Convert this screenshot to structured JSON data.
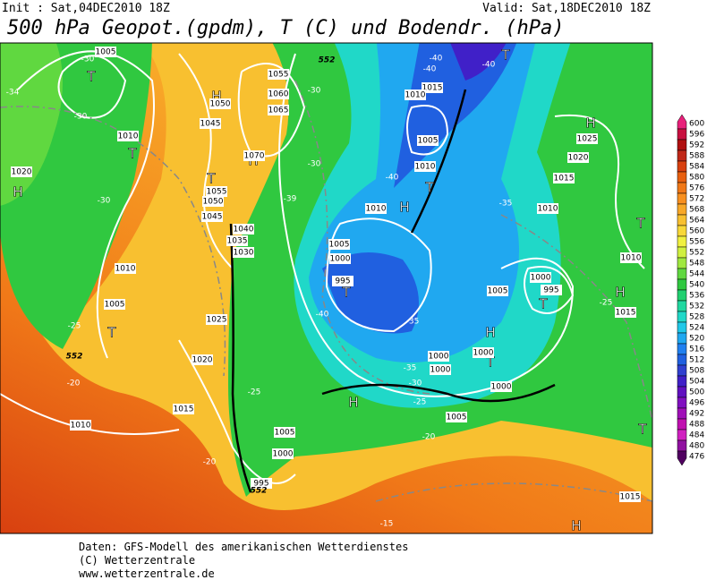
{
  "header": {
    "init": "Init : Sat,04DEC2010 18Z",
    "valid": "Valid: Sat,18DEC2010 18Z",
    "title": "500 hPa Geopot.(gpdm), T (C) und Bodendr. (hPa)"
  },
  "colorbar": {
    "levels": [
      600,
      596,
      592,
      588,
      584,
      580,
      576,
      572,
      568,
      564,
      560,
      556,
      552,
      548,
      544,
      540,
      536,
      532,
      528,
      524,
      520,
      516,
      512,
      508,
      504,
      500,
      496,
      492,
      488,
      484,
      480,
      476
    ],
    "colors": [
      "#e8207a",
      "#c81040",
      "#b01010",
      "#c02818",
      "#d84010",
      "#e86010",
      "#f07818",
      "#f89020",
      "#f8a828",
      "#f8c030",
      "#f8d838",
      "#f0f040",
      "#d0f040",
      "#a0e840",
      "#60d840",
      "#30c840",
      "#20d070",
      "#20d8a0",
      "#20d8c8",
      "#20c8e8",
      "#20a8f0",
      "#2080f0",
      "#2060e0",
      "#3040d0",
      "#4020c8",
      "#6010c0",
      "#8010c0",
      "#a010b8",
      "#c010b0",
      "#d020c0",
      "#9010a0",
      "#500060"
    ]
  },
  "map": {
    "pressure_systems": [
      "T",
      "H",
      "H",
      "T",
      "T",
      "H",
      "T",
      "T",
      "H",
      "T",
      "T",
      "H",
      "T",
      "H",
      "T",
      "H",
      "T",
      "H",
      "T",
      "H"
    ],
    "isobar_labels": [
      "1005",
      "1010",
      "1020",
      "1010",
      "1005",
      "1025",
      "1020",
      "1015",
      "1010",
      "1045",
      "1050",
      "1055",
      "1060",
      "1065",
      "1070",
      "1055",
      "1050",
      "1045",
      "1040",
      "1035",
      "1030",
      "1015",
      "1010",
      "1005",
      "1010",
      "1010",
      "1005",
      "1000",
      "995",
      "1025",
      "1020",
      "1015",
      "1010",
      "1010",
      "1015",
      "1000",
      "995",
      "1005",
      "1000",
      "1000",
      "1000",
      "1000",
      "1005",
      "1005",
      "1000",
      "995",
      "1015"
    ],
    "temperature_labels": [
      "-30",
      "-34",
      "-30",
      "-30",
      "-30",
      "-39",
      "-30",
      "-25",
      "-20",
      "-20",
      "-25",
      "-40",
      "-35",
      "-35",
      "-30",
      "-25",
      "-20",
      "-35",
      "-40",
      "-40",
      "-40",
      "-40",
      "-25",
      "-15"
    ],
    "height_labels": [
      "552",
      "552",
      "552"
    ]
  },
  "footer": [
    "Daten: GFS-Modell des amerikanischen Wetterdienstes",
    "(C) Wetterzentrale",
    "www.wetterzentrale.de"
  ]
}
